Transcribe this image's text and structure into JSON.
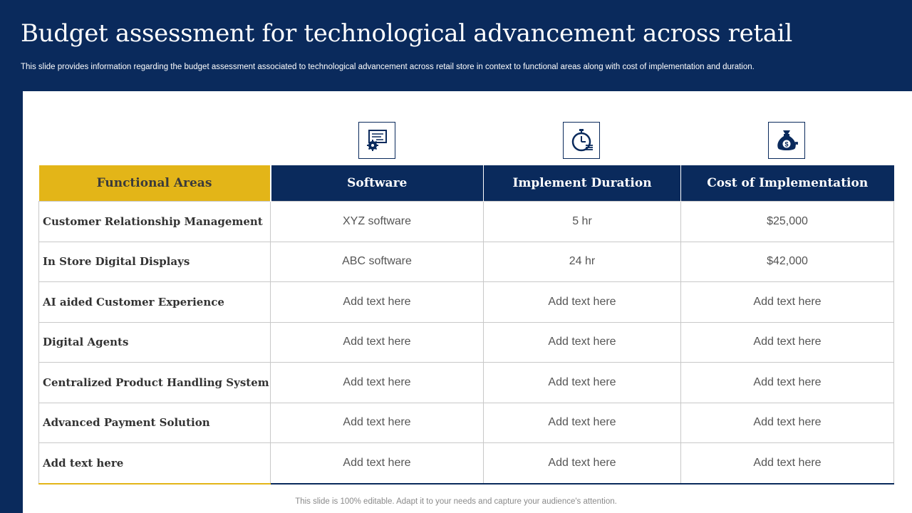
{
  "slide": {
    "title": "Budget assessment for technological advancement across retail",
    "subtitle": "This slide provides information regarding the budget assessment associated to technological advancement across retail store in context to functional areas along with cost of implementation and duration.",
    "footer": "This slide is 100% editable. Adapt it to your needs and capture your audience's attention."
  },
  "icons": [
    "software-certificate-gear-icon",
    "stopwatch-icon",
    "money-bag-icon"
  ],
  "colors": {
    "navy": "#0a2a5c",
    "gold": "#e3b518"
  },
  "table": {
    "headers": [
      "Functional Areas",
      "Software",
      "Implement Duration",
      "Cost of Implementation"
    ],
    "rows": [
      [
        "Customer Relationship Management",
        "XYZ  software",
        "5 hr",
        "$25,000"
      ],
      [
        "In Store Digital Displays",
        "ABC software",
        "24 hr",
        "$42,000"
      ],
      [
        "AI aided Customer Experience",
        "Add text here",
        "Add text here",
        "Add text here"
      ],
      [
        "Digital Agents",
        "Add text here",
        "Add text here",
        "Add text here"
      ],
      [
        "Centralized Product Handling System",
        "Add text here",
        "Add text here",
        "Add text here"
      ],
      [
        "Advanced Payment Solution",
        "Add text here",
        "Add text here",
        "Add text here"
      ],
      [
        "Add text here",
        "Add text here",
        "Add text here",
        "Add text here"
      ]
    ]
  }
}
